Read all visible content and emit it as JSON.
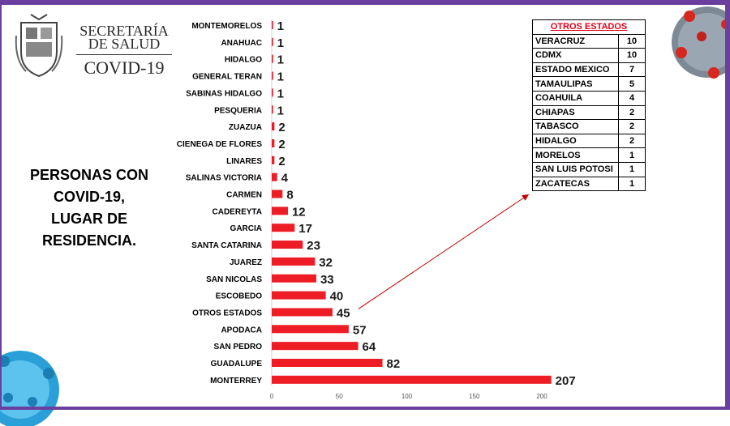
{
  "header": {
    "org_line1": "SECRETARÍA",
    "org_line2": "DE SALUD",
    "program": "COVID-19"
  },
  "side_title": {
    "line1": "PERSONAS CON",
    "line2": "COVID-19,",
    "line3": "LUGAR DE",
    "line4": "RESIDENCIA."
  },
  "colors": {
    "bar": "#ee1c25",
    "frame": "#6a3fa0",
    "table_header": "#e0001b"
  },
  "chart_data": {
    "type": "bar",
    "orientation": "horizontal",
    "categories": [
      "MONTEMORELOS",
      "ANAHUAC",
      "HIDALGO",
      "GENERAL TERAN",
      "SABINAS HIDALGO",
      "PESQUERIA",
      "ZUAZUA",
      "CIENEGA DE FLORES",
      "LINARES",
      "SALINAS VICTORIA",
      "CARMEN",
      "CADEREYTA",
      "GARCIA",
      "SANTA CATARINA",
      "JUAREZ",
      "SAN NICOLAS",
      "ESCOBEDO",
      "OTROS ESTADOS",
      "APODACA",
      "SAN PEDRO",
      "GUADALUPE",
      "MONTERREY"
    ],
    "values": [
      1,
      1,
      1,
      1,
      1,
      1,
      2,
      2,
      2,
      4,
      8,
      12,
      17,
      23,
      32,
      33,
      40,
      45,
      57,
      64,
      82,
      207
    ],
    "x_ticks": [
      "0",
      "50",
      "100",
      "150",
      "200"
    ],
    "xlim": [
      0,
      207
    ],
    "grid": false,
    "legend": "none"
  },
  "otros_estados": {
    "title": "OTROS ESTADOS",
    "rows": [
      {
        "state": "VERACRUZ",
        "count": "10"
      },
      {
        "state": "CDMX",
        "count": "10"
      },
      {
        "state": "ESTADO MEXICO",
        "count": "7"
      },
      {
        "state": "TAMAULIPAS",
        "count": "5"
      },
      {
        "state": "COAHUILA",
        "count": "4"
      },
      {
        "state": "CHIAPAS",
        "count": "2"
      },
      {
        "state": "TABASCO",
        "count": "2"
      },
      {
        "state": "HIDALGO",
        "count": "2"
      },
      {
        "state": "MORELOS",
        "count": "1"
      },
      {
        "state": "SAN LUIS POTOSI",
        "count": "1"
      },
      {
        "state": "ZACATECAS",
        "count": "1"
      }
    ]
  }
}
